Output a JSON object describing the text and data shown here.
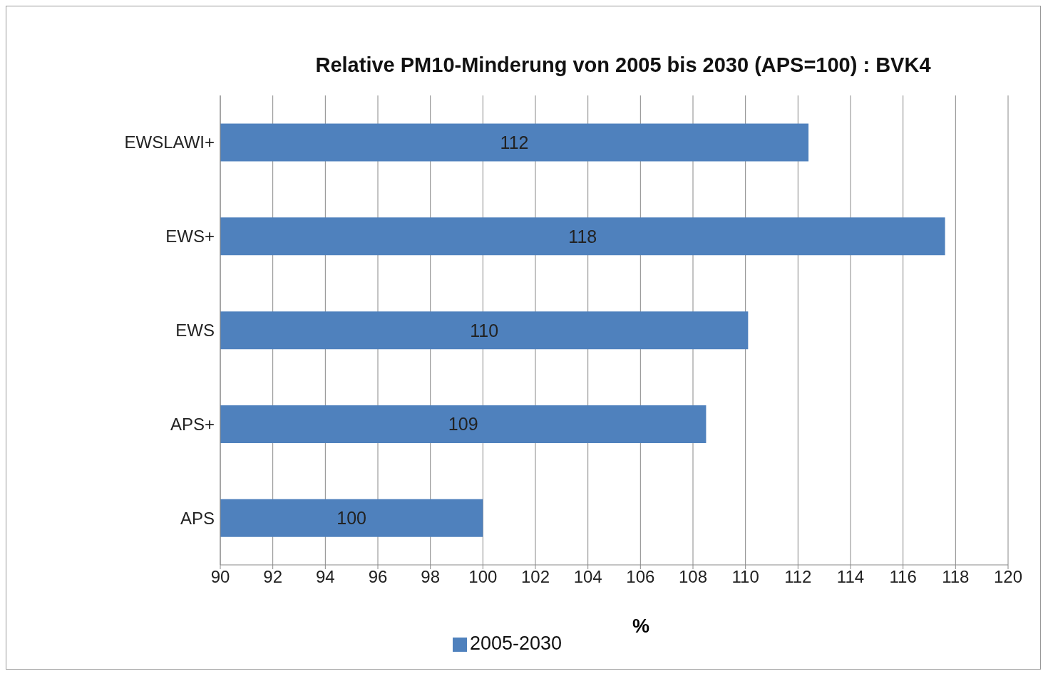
{
  "chart_data": {
    "type": "bar",
    "orientation": "horizontal",
    "title": "Relative PM10-Minderung von 2005 bis 2030 (APS=100) :  BVK4",
    "xlabel": "%",
    "categories": [
      "EWSLAWI+",
      "EWS+",
      "EWS",
      "APS+",
      "APS"
    ],
    "series": [
      {
        "name": "2005-2030",
        "color": "#4f81bd",
        "values": [
          112.4,
          117.6,
          110.1,
          108.5,
          100
        ],
        "value_labels": [
          "112",
          "118",
          "110",
          "109",
          "100"
        ]
      }
    ],
    "xlim": [
      90,
      120
    ],
    "xticks": [
      90,
      92,
      94,
      96,
      98,
      100,
      102,
      104,
      106,
      108,
      110,
      112,
      114,
      116,
      118,
      120
    ],
    "grid": "x",
    "legend": "bottom"
  }
}
